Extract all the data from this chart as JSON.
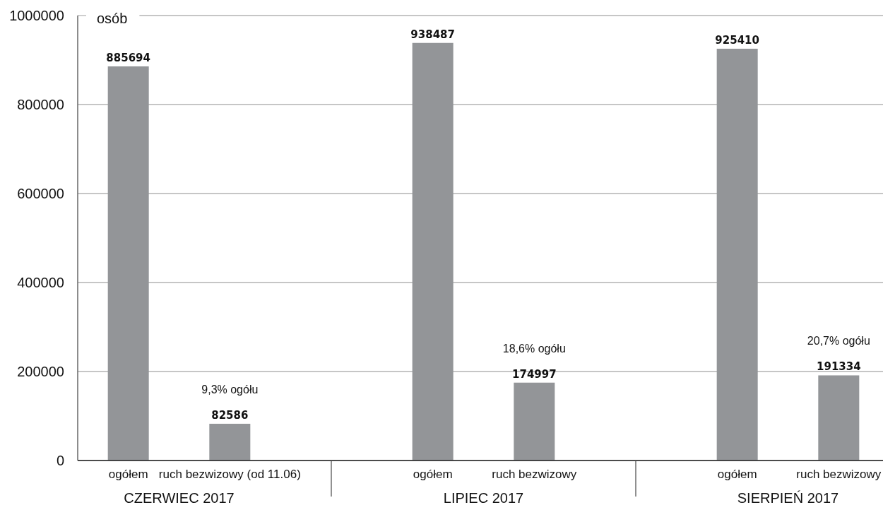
{
  "chart_data": {
    "type": "bar",
    "ylabel": "osób",
    "categories": [
      "ogółem",
      "ruch bezwizowy (od 11.06)",
      "ogółem",
      "ruch bezwizowy",
      "ogółem",
      "ruch bezwizowy"
    ],
    "values": [
      885694,
      82586,
      938487,
      174997,
      925410,
      191334
    ],
    "color": "#939598",
    "ylim": [
      0,
      1000000
    ],
    "yticks": [
      0,
      200000,
      400000,
      600000,
      800000,
      1000000
    ],
    "grid": "y",
    "data_labels": true,
    "annotations": [
      "9,3% ogółu",
      "18,6% ogółu",
      "20,7% ogółu",
      "CZERWIEC 2017",
      "LIPIEC 2017",
      "SIERPIEŃ 2017"
    ]
  }
}
